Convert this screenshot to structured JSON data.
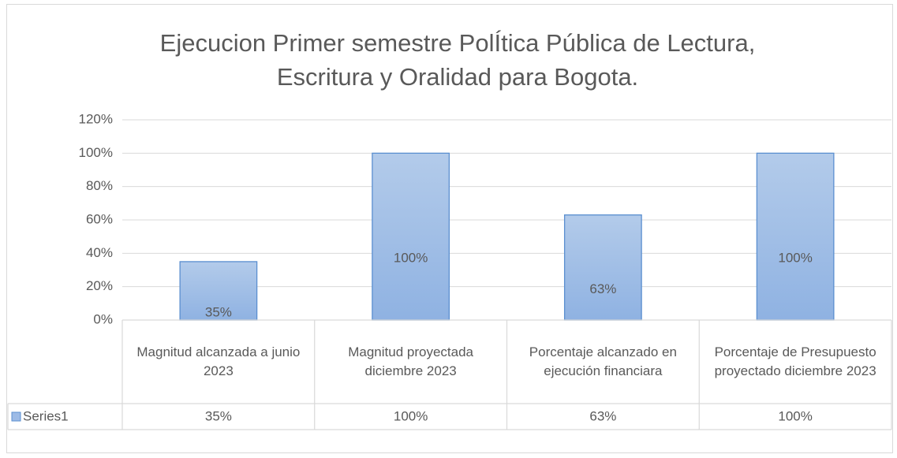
{
  "chart_data": {
    "type": "bar",
    "title": [
      "Ejecucion Primer semestre PolÍtica Pública  de Lectura,",
      "Escritura y Oralidad para Bogota."
    ],
    "categories": [
      "Magnitud alcanzada a junio 2023",
      "Magnitud proyectada diciembre 2023",
      "Porcentaje alcanzado en ejecución financiara",
      "Porcentaje de Presupuesto proyectado diciembre 2023"
    ],
    "series": [
      {
        "name": "Series1",
        "color": "#9dbbe6",
        "values": [
          35,
          100,
          63,
          100
        ],
        "value_labels": [
          "35%",
          "100%",
          "63%",
          "100%"
        ]
      }
    ],
    "ylim": [
      0,
      120
    ],
    "yticks": [
      {
        "value": 0,
        "label": "0%"
      },
      {
        "value": 20,
        "label": "20%"
      },
      {
        "value": 40,
        "label": "40%"
      },
      {
        "value": 60,
        "label": "60%"
      },
      {
        "value": 80,
        "label": "80%"
      },
      {
        "value": 100,
        "label": "100%"
      },
      {
        "value": 120,
        "label": "120%"
      }
    ],
    "grid": true,
    "data_table": true
  }
}
